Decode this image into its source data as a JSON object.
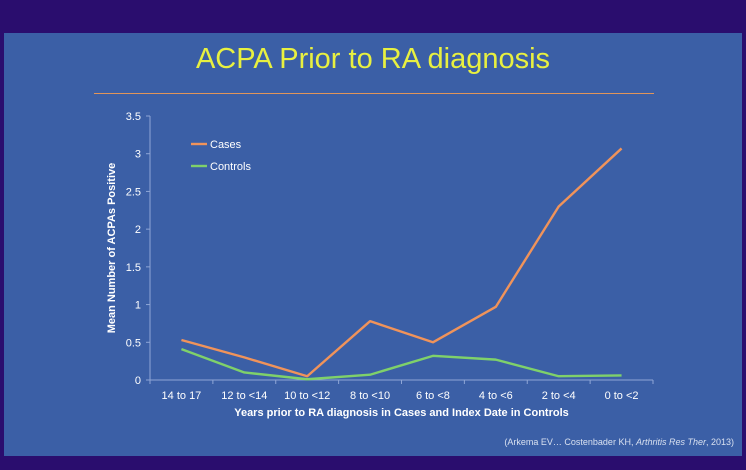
{
  "slide": {
    "title": "ACPA Prior to RA diagnosis",
    "citation_prefix": "(Arkema EV… Costenbader KH, ",
    "citation_journal": "Arthritis Res Ther",
    "citation_suffix": ", 2013)"
  },
  "colors": {
    "background": "#3b5fa6",
    "border": "#2a0d6e",
    "title": "#e8f040",
    "cases": "#f0935a",
    "controls": "#7fd16a",
    "axis_text": "#ffffff"
  },
  "chart_data": {
    "type": "line",
    "title": "",
    "xlabel": "Years prior to RA diagnosis in Cases and Index Date in Controls",
    "ylabel": "Mean Number of ACPAs Positive",
    "categories": [
      "14 to 17",
      "12 to <14",
      "10 to <12",
      "8 to <10",
      "6 to <8",
      "4 to <6",
      "2 to <4",
      "0 to <2"
    ],
    "ylim": [
      0,
      3.5
    ],
    "yticks": [
      "0",
      "0.5",
      "1",
      "1.5",
      "2",
      "2.5",
      "3",
      "3.5"
    ],
    "grid": false,
    "legend_position": "top-left",
    "series": [
      {
        "name": "Cases",
        "color": "#f0935a",
        "values": [
          0.53,
          0.3,
          0.05,
          0.78,
          0.5,
          0.97,
          2.3,
          3.07
        ]
      },
      {
        "name": "Controls",
        "color": "#7fd16a",
        "values": [
          0.41,
          0.1,
          0.01,
          0.07,
          0.32,
          0.27,
          0.05,
          0.06
        ]
      }
    ]
  }
}
